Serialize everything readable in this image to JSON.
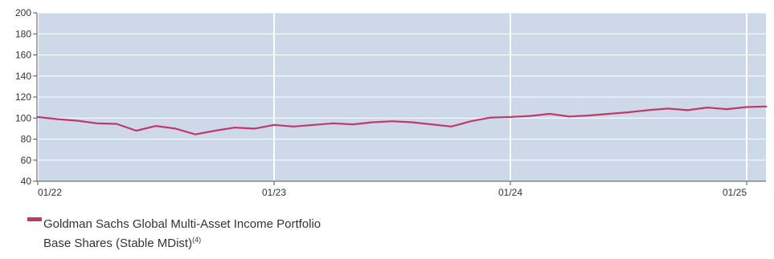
{
  "chart_data": {
    "type": "line",
    "title": "",
    "xlabel": "",
    "ylabel": "",
    "ylim": [
      40,
      200
    ],
    "y_ticks": [
      40,
      60,
      80,
      100,
      120,
      140,
      160,
      180,
      200
    ],
    "x_tick_labels": [
      "01/22",
      "01/23",
      "01/24",
      "01/25"
    ],
    "grid": true,
    "legend_position": "bottom-left",
    "series": [
      {
        "name": "Goldman Sachs Global Multi-Asset Income Portfolio Base Shares (Stable MDist)",
        "name_superscript": "(4)",
        "color": "#c0396b",
        "x": [
          "01/22",
          "02/22",
          "03/22",
          "04/22",
          "05/22",
          "06/22",
          "07/22",
          "08/22",
          "09/22",
          "10/22",
          "11/22",
          "12/22",
          "01/23",
          "02/23",
          "03/23",
          "04/23",
          "05/23",
          "06/23",
          "07/23",
          "08/23",
          "09/23",
          "10/23",
          "11/23",
          "12/23",
          "01/24",
          "02/24",
          "03/24",
          "04/24",
          "05/24",
          "06/24",
          "07/24",
          "08/24",
          "09/24",
          "10/24",
          "11/24",
          "12/24",
          "01/25",
          "02/25"
        ],
        "values": [
          101,
          99,
          97.5,
          95,
          94.5,
          88,
          92.5,
          90,
          84.5,
          88,
          91,
          90,
          93.5,
          92,
          93.5,
          95,
          94,
          96,
          97,
          96,
          94,
          92,
          97,
          100.5,
          101,
          102,
          104,
          101.5,
          102.5,
          104,
          105.5,
          107.5,
          109,
          107.5,
          110,
          108.5,
          110.5,
          111
        ]
      }
    ]
  }
}
